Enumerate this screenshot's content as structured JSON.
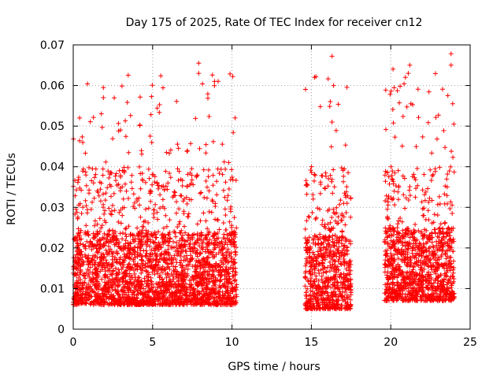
{
  "chart_data": {
    "type": "scatter",
    "title": "Day 175 of 2025, Rate Of TEC Index for receiver cn12",
    "xlabel": "GPS time / hours",
    "ylabel": "ROTI / TECUs",
    "xlim": [
      0,
      25
    ],
    "ylim": [
      0,
      0.07
    ],
    "xticks": [
      0,
      5,
      10,
      15,
      20,
      25
    ],
    "yticks": [
      0,
      0.01,
      0.02,
      0.03,
      0.04,
      0.05,
      0.06,
      0.07
    ],
    "xtick_labels": [
      "0",
      "5",
      "10",
      "15",
      "20",
      "25"
    ],
    "ytick_labels": [
      "0",
      "0.01",
      "0.02",
      "0.03",
      "0.04",
      "0.05",
      "0.06",
      "0.07"
    ],
    "grid": true,
    "marker": "+",
    "color": "#ff0000",
    "series": [
      {
        "segments": [
          {
            "x_start": 0.0,
            "x_end": 10.3,
            "y_min": 0.003,
            "y_max": 0.066
          },
          {
            "x_start": 14.6,
            "x_end": 17.5,
            "y_min": 0.002,
            "y_max": 0.067
          },
          {
            "x_start": 19.6,
            "x_end": 24.0,
            "y_min": 0.004,
            "y_max": 0.068
          }
        ],
        "outliers": [
          {
            "x": 0.4,
            "y": 0.052
          },
          {
            "x": 1.9,
            "y": 0.0595
          },
          {
            "x": 1.9,
            "y": 0.057
          },
          {
            "x": 7.9,
            "y": 0.0655
          },
          {
            "x": 7.9,
            "y": 0.063
          },
          {
            "x": 8.9,
            "y": 0.061
          },
          {
            "x": 10.2,
            "y": 0.052
          },
          {
            "x": 15.2,
            "y": 0.062
          },
          {
            "x": 16.3,
            "y": 0.0672
          },
          {
            "x": 16.4,
            "y": 0.06
          },
          {
            "x": 16.3,
            "y": 0.051
          },
          {
            "x": 21.2,
            "y": 0.065
          },
          {
            "x": 21.1,
            "y": 0.063
          },
          {
            "x": 23.8,
            "y": 0.0678
          },
          {
            "x": 23.8,
            "y": 0.065
          },
          {
            "x": 23.9,
            "y": 0.0555
          }
        ]
      }
    ]
  }
}
